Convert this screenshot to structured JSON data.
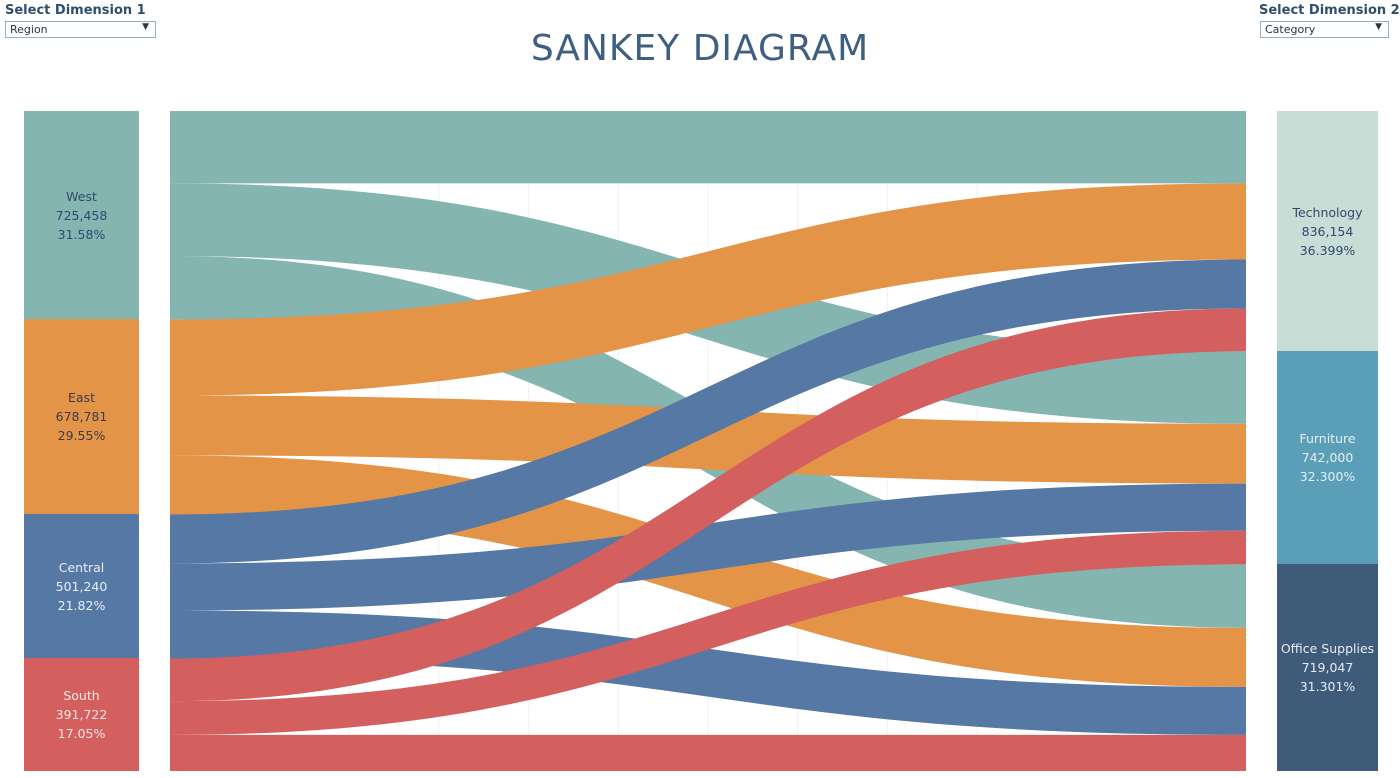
{
  "controls": {
    "dim1": {
      "label": "Select Dimension 1",
      "value": "Region"
    },
    "dim2": {
      "label": "Select Dimension 2",
      "value": "Category"
    }
  },
  "chart_data": {
    "type": "sankey",
    "title": "SANKEY DIAGRAM",
    "sources": [
      {
        "name": "West",
        "value": "725,458",
        "pct": "31.58%",
        "amount": 725458,
        "color": "#84b5b1",
        "text_color": "#2e4a6e"
      },
      {
        "name": "East",
        "value": "678,781",
        "pct": "29.55%",
        "amount": 678781,
        "color": "#e49446",
        "text_color": "#3c3a4a"
      },
      {
        "name": "Central",
        "value": "501,240",
        "pct": "21.82%",
        "amount": 501240,
        "color": "#5578a5",
        "text_color": "#e8eef6"
      },
      {
        "name": "South",
        "value": "391,722",
        "pct": "17.05%",
        "amount": 391722,
        "color": "#d35f5f",
        "text_color": "#f6e6e6"
      }
    ],
    "targets": [
      {
        "name": "Technology",
        "value": "836,154",
        "pct": "36.399%",
        "amount": 836154,
        "color": "#c8ddd5",
        "text_color": "#2e4a6e"
      },
      {
        "name": "Furniture",
        "value": "742,000",
        "pct": "32.300%",
        "amount": 742000,
        "color": "#5a9fb7",
        "text_color": "#e6f0f4"
      },
      {
        "name": "Office Supplies",
        "value": "719,047",
        "pct": "31.301%",
        "amount": 719047,
        "color": "#3e5b7a",
        "text_color": "#e6ecf2"
      }
    ],
    "flows": [
      {
        "source": "West",
        "target": "Technology",
        "value": 251991
      },
      {
        "source": "West",
        "target": "Furniture",
        "value": 252613
      },
      {
        "source": "West",
        "target": "Office Supplies",
        "value": 220854
      },
      {
        "source": "East",
        "target": "Technology",
        "value": 264974
      },
      {
        "source": "East",
        "target": "Furniture",
        "value": 208291
      },
      {
        "source": "East",
        "target": "Office Supplies",
        "value": 205516
      },
      {
        "source": "Central",
        "target": "Technology",
        "value": 170416
      },
      {
        "source": "Central",
        "target": "Furniture",
        "value": 163797
      },
      {
        "source": "Central",
        "target": "Office Supplies",
        "value": 167026
      },
      {
        "source": "South",
        "target": "Technology",
        "value": 148771
      },
      {
        "source": "South",
        "target": "Furniture",
        "value": 117299
      },
      {
        "source": "South",
        "target": "Office Supplies",
        "value": 125651
      }
    ]
  }
}
